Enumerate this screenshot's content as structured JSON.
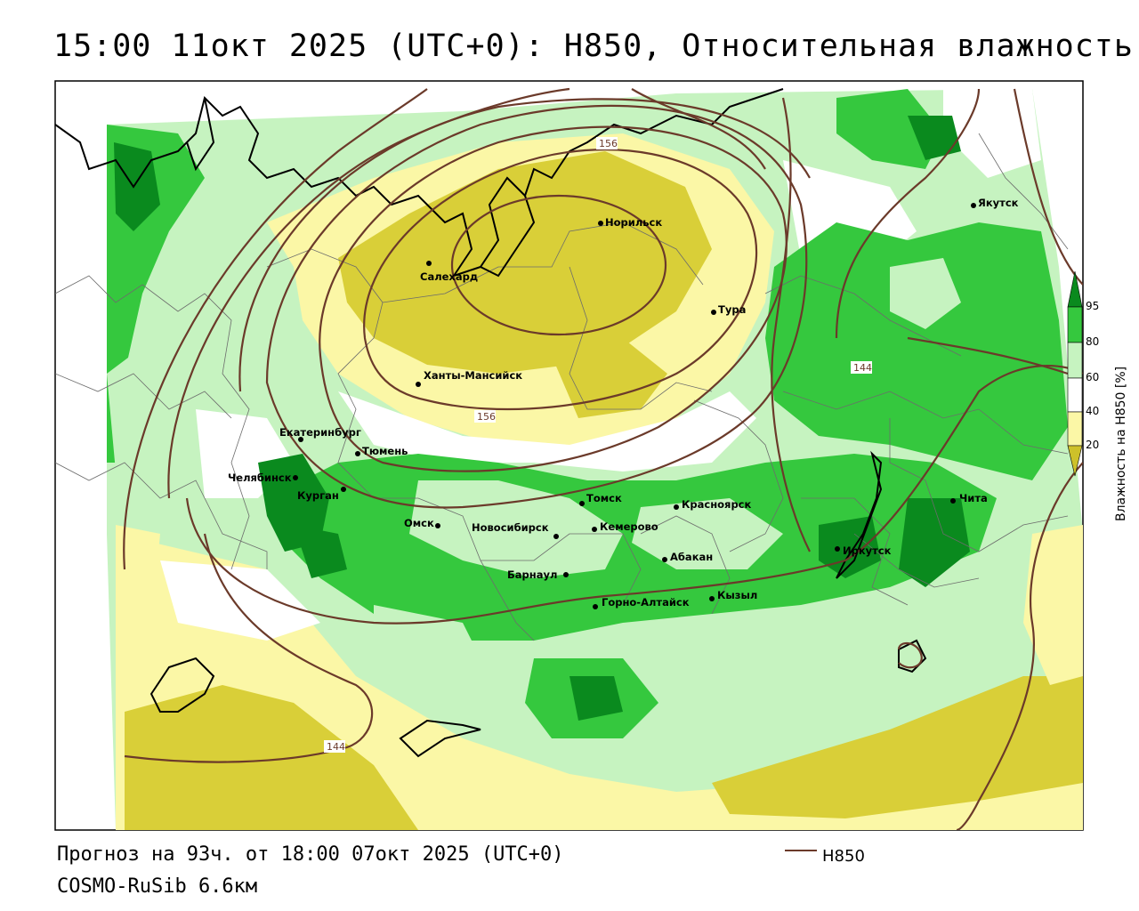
{
  "title": "15:00 11окт 2025 (UTC+0): H850, Относительная влажность",
  "forecast_line": "Прогноз на 93ч. от 18:00 07окт 2025 (UTC+0)",
  "model_line": "COSMO-RuSib 6.6км",
  "legend": {
    "contour_label": "H850",
    "contour_color": "#6b3a2a"
  },
  "colorbar": {
    "title": "Влажность на H850 [%]",
    "ticks": [
      "20",
      "40",
      "60",
      "80",
      "95"
    ],
    "colors": {
      "c0_20": "#cdc12a",
      "c20_40": "#fbf7a6",
      "c40_60": "#ffffff",
      "c60_80": "#c6f3c0",
      "c80_95": "#35c83e",
      "c95": "#0a8a1e"
    }
  },
  "contour_labels": [
    "156",
    "156",
    "144",
    "144"
  ],
  "cities": [
    {
      "name": "Норильск"
    },
    {
      "name": "Якутск"
    },
    {
      "name": "Салехард"
    },
    {
      "name": "Тура"
    },
    {
      "name": "Ханты-Мансийск"
    },
    {
      "name": "Екатеринбург"
    },
    {
      "name": "Тюмень"
    },
    {
      "name": "Челябинск"
    },
    {
      "name": "Курган"
    },
    {
      "name": "Томск"
    },
    {
      "name": "Красноярск"
    },
    {
      "name": "Чита"
    },
    {
      "name": "Омск"
    },
    {
      "name": "Новосибирск"
    },
    {
      "name": "Кемерово"
    },
    {
      "name": "Иркутск"
    },
    {
      "name": "Абакан"
    },
    {
      "name": "Барнаул"
    },
    {
      "name": "Кызыл"
    },
    {
      "name": "Горно-Алтайск"
    }
  ]
}
